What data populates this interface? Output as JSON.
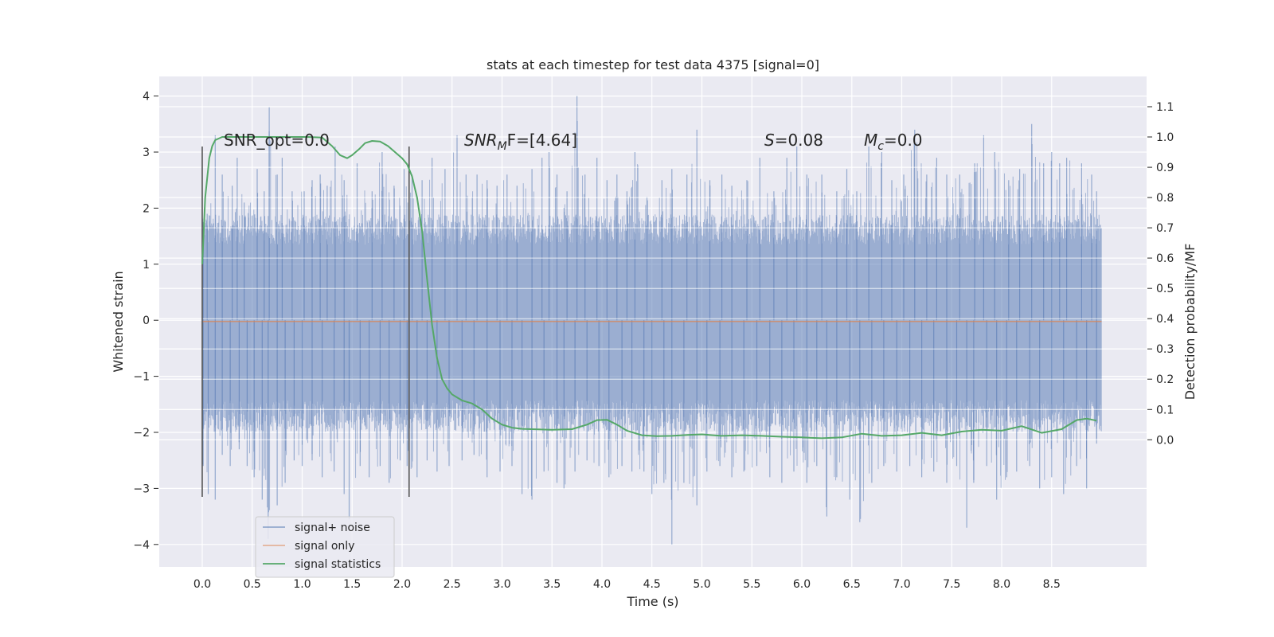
{
  "chart_data": {
    "type": "line",
    "title": "stats at each timestep for test data 4375 [signal=0]",
    "xlabel": "Time (s)",
    "ylabel": "Whitened strain",
    "ylabel_right": "Detection probability/MF",
    "xlim": [
      -0.43,
      9.45
    ],
    "ylim": [
      -4.4,
      4.35
    ],
    "ylim_right": [
      -0.42,
      1.2
    ],
    "x_ticks": [
      "0.0",
      "0.5",
      "1.0",
      "1.5",
      "2.0",
      "2.5",
      "3.0",
      "3.5",
      "4.0",
      "4.5",
      "5.0",
      "5.5",
      "6.0",
      "6.5",
      "7.0",
      "7.5",
      "8.0",
      "8.5"
    ],
    "x_tick_values": [
      0,
      0.5,
      1,
      1.5,
      2,
      2.5,
      3,
      3.5,
      4,
      4.5,
      5,
      5.5,
      6,
      6.5,
      7,
      7.5,
      8,
      8.5
    ],
    "y_ticks": [
      "4",
      "3",
      "2",
      "1",
      "0",
      "−1",
      "−2",
      "−3",
      "−4"
    ],
    "y_tick_values": [
      4,
      3,
      2,
      1,
      0,
      -1,
      -2,
      -3,
      -4
    ],
    "y_ticks_right": [
      "1.1",
      "1.0",
      "0.9",
      "0.8",
      "0.7",
      "0.6",
      "0.5",
      "0.4",
      "0.3",
      "0.2",
      "0.1",
      "0.0"
    ],
    "y_tick_values_right": [
      1.1,
      1.0,
      0.9,
      0.8,
      0.7,
      0.6,
      0.5,
      0.4,
      0.3,
      0.2,
      0.1,
      0.0
    ],
    "annotations": {
      "snr_opt": "SNR_opt=0.0",
      "snr_mf_main": "SNR",
      "snr_mf_sub": "M",
      "snr_mf_rest": "F=[4.64]",
      "s_main": "S",
      "s_rest": "=0.08",
      "mc_main": "M",
      "mc_sub": "c",
      "mc_rest": "=0.0"
    },
    "vlines": [
      0.0,
      2.07
    ],
    "vline_range": [
      -3.15,
      3.1
    ],
    "series": [
      {
        "name": "signal+ noise",
        "color": "#4c72b0",
        "kind": "noise",
        "x_range": [
          0,
          9.0
        ],
        "envelope_pos_typical": 1.8,
        "envelope_neg_typical": -1.9,
        "peak_values": [
          [
            0.01,
            1.75
          ],
          [
            0.05,
            1.9
          ],
          [
            0.13,
            3.3
          ],
          [
            0.2,
            2.6
          ],
          [
            0.3,
            2.4
          ],
          [
            0.35,
            2.9
          ],
          [
            0.42,
            2.1
          ],
          [
            0.55,
            2.7
          ],
          [
            0.62,
            2.3
          ],
          [
            0.67,
            3.8
          ],
          [
            0.75,
            2.6
          ],
          [
            0.8,
            2.9
          ],
          [
            0.9,
            2.3
          ],
          [
            1.02,
            2.3
          ],
          [
            1.1,
            2.5
          ],
          [
            1.18,
            2.6
          ],
          [
            1.25,
            2.4
          ],
          [
            1.33,
            3.1
          ],
          [
            1.42,
            2.5
          ],
          [
            1.55,
            2.8
          ],
          [
            1.7,
            2.3
          ],
          [
            1.8,
            3.0
          ],
          [
            1.92,
            2.4
          ],
          [
            2.02,
            2.7
          ],
          [
            2.1,
            2.6
          ],
          [
            2.2,
            2.5
          ],
          [
            2.3,
            2.9
          ],
          [
            2.43,
            2.7
          ],
          [
            2.55,
            3.3
          ],
          [
            2.64,
            2.6
          ],
          [
            2.75,
            2.6
          ],
          [
            2.85,
            2.5
          ],
          [
            2.95,
            2.4
          ],
          [
            3.05,
            2.6
          ],
          [
            3.15,
            2.4
          ],
          [
            3.3,
            2.7
          ],
          [
            3.4,
            2.9
          ],
          [
            3.47,
            3.0
          ],
          [
            3.55,
            2.6
          ],
          [
            3.65,
            2.3
          ],
          [
            3.75,
            4.0
          ],
          [
            3.83,
            2.6
          ],
          [
            3.95,
            2.9
          ],
          [
            4.05,
            2.5
          ],
          [
            4.15,
            2.6
          ],
          [
            4.25,
            2.3
          ],
          [
            4.33,
            3.0
          ],
          [
            4.45,
            2.2
          ],
          [
            4.6,
            2.5
          ],
          [
            4.7,
            2.7
          ],
          [
            4.85,
            2.6
          ],
          [
            4.95,
            3.4
          ],
          [
            5.08,
            2.5
          ],
          [
            5.2,
            2.6
          ],
          [
            5.3,
            2.4
          ],
          [
            5.45,
            2.5
          ],
          [
            5.58,
            2.9
          ],
          [
            5.72,
            2.3
          ],
          [
            5.85,
            2.9
          ],
          [
            5.95,
            3.1
          ],
          [
            6.05,
            2.6
          ],
          [
            6.2,
            2.6
          ],
          [
            6.35,
            2.3
          ],
          [
            6.45,
            2.7
          ],
          [
            6.55,
            2.3
          ],
          [
            6.67,
            3.1
          ],
          [
            6.8,
            3.0
          ],
          [
            6.9,
            2.5
          ],
          [
            7.02,
            2.6
          ],
          [
            7.13,
            3.4
          ],
          [
            7.25,
            2.6
          ],
          [
            7.35,
            2.9
          ],
          [
            7.45,
            2.6
          ],
          [
            7.58,
            2.6
          ],
          [
            7.73,
            2.8
          ],
          [
            7.82,
            3.3
          ],
          [
            7.93,
            3.0
          ],
          [
            8.07,
            2.5
          ],
          [
            8.18,
            2.7
          ],
          [
            8.3,
            3.5
          ],
          [
            8.42,
            2.8
          ],
          [
            8.5,
            3.0
          ],
          [
            8.58,
            2.8
          ],
          [
            8.65,
            2.9
          ],
          [
            8.8,
            2.8
          ],
          [
            8.9,
            2.6
          ],
          [
            8.95,
            2.3
          ]
        ],
        "trough_values": [
          [
            0.01,
            -2.6
          ],
          [
            0.06,
            -3.1
          ],
          [
            0.13,
            -3.2
          ],
          [
            0.2,
            -2.4
          ],
          [
            0.28,
            -2.6
          ],
          [
            0.37,
            -2.3
          ],
          [
            0.45,
            -2.6
          ],
          [
            0.52,
            -2.8
          ],
          [
            0.6,
            -3.2
          ],
          [
            0.66,
            -3.9
          ],
          [
            0.75,
            -3.3
          ],
          [
            0.83,
            -2.9
          ],
          [
            0.92,
            -2.5
          ],
          [
            1.0,
            -2.6
          ],
          [
            1.1,
            -2.5
          ],
          [
            1.2,
            -2.8
          ],
          [
            1.32,
            -2.7
          ],
          [
            1.42,
            -3.1
          ],
          [
            1.47,
            -3.55
          ],
          [
            1.58,
            -2.6
          ],
          [
            1.67,
            -2.8
          ],
          [
            1.78,
            -2.6
          ],
          [
            1.87,
            -2.9
          ],
          [
            1.98,
            -2.5
          ],
          [
            2.05,
            -2.6
          ],
          [
            2.15,
            -2.8
          ],
          [
            2.25,
            -2.5
          ],
          [
            2.35,
            -2.7
          ],
          [
            2.47,
            -2.6
          ],
          [
            2.6,
            -2.5
          ],
          [
            2.72,
            -2.4
          ],
          [
            2.85,
            -2.8
          ],
          [
            2.98,
            -2.7
          ],
          [
            3.1,
            -2.6
          ],
          [
            3.2,
            -3.1
          ],
          [
            3.3,
            -3.2
          ],
          [
            3.42,
            -2.7
          ],
          [
            3.55,
            -2.9
          ],
          [
            3.62,
            -3.0
          ],
          [
            3.73,
            -2.7
          ],
          [
            3.85,
            -2.5
          ],
          [
            3.97,
            -2.6
          ],
          [
            4.07,
            -2.8
          ],
          [
            4.2,
            -2.6
          ],
          [
            4.3,
            -2.7
          ],
          [
            4.42,
            -2.7
          ],
          [
            4.5,
            -3.1
          ],
          [
            4.62,
            -2.9
          ],
          [
            4.7,
            -4.0
          ],
          [
            4.82,
            -2.9
          ],
          [
            4.95,
            -3.3
          ],
          [
            5.05,
            -2.7
          ],
          [
            5.18,
            -2.6
          ],
          [
            5.3,
            -2.8
          ],
          [
            5.42,
            -2.7
          ],
          [
            5.55,
            -2.6
          ],
          [
            5.68,
            -2.8
          ],
          [
            5.8,
            -2.9
          ],
          [
            5.92,
            -2.7
          ],
          [
            6.05,
            -2.9
          ],
          [
            6.15,
            -2.6
          ],
          [
            6.25,
            -3.5
          ],
          [
            6.35,
            -2.8
          ],
          [
            6.48,
            -3.2
          ],
          [
            6.58,
            -3.6
          ],
          [
            6.7,
            -2.9
          ],
          [
            6.82,
            -2.6
          ],
          [
            6.95,
            -2.7
          ],
          [
            7.08,
            -2.6
          ],
          [
            7.2,
            -2.8
          ],
          [
            7.32,
            -2.7
          ],
          [
            7.45,
            -2.9
          ],
          [
            7.55,
            -2.6
          ],
          [
            7.65,
            -3.7
          ],
          [
            7.72,
            -2.9
          ],
          [
            7.85,
            -2.6
          ],
          [
            7.95,
            -3.2
          ],
          [
            8.05,
            -2.8
          ],
          [
            8.15,
            -2.7
          ],
          [
            8.28,
            -2.6
          ],
          [
            8.38,
            -3.0
          ],
          [
            8.5,
            -2.8
          ],
          [
            8.62,
            -3.1
          ],
          [
            8.75,
            -2.6
          ],
          [
            8.85,
            -3.0
          ],
          [
            8.95,
            -2.2
          ]
        ]
      },
      {
        "name": "signal only",
        "color": "#dd8452",
        "kind": "flat",
        "x": [
          0,
          9.0
        ],
        "y": [
          -0.02,
          -0.02
        ]
      },
      {
        "name": "signal statistics",
        "color": "#55a868",
        "kind": "line",
        "axis": "right",
        "x": [
          0.0,
          0.03,
          0.07,
          0.1,
          0.13,
          0.2,
          0.3,
          0.5,
          0.7,
          0.9,
          1.05,
          1.2,
          1.3,
          1.38,
          1.45,
          1.5,
          1.57,
          1.63,
          1.7,
          1.78,
          1.86,
          1.93,
          2.0,
          2.05,
          2.1,
          2.15,
          2.2,
          2.25,
          2.3,
          2.35,
          2.4,
          2.45,
          2.5,
          2.55,
          2.6,
          2.7,
          2.8,
          2.9,
          3.0,
          3.1,
          3.2,
          3.3,
          3.5,
          3.7,
          3.85,
          3.95,
          4.05,
          4.15,
          4.25,
          4.4,
          4.55,
          4.7,
          4.85,
          5.0,
          5.2,
          5.4,
          5.6,
          5.8,
          6.0,
          6.2,
          6.4,
          6.6,
          6.8,
          7.0,
          7.2,
          7.4,
          7.6,
          7.8,
          8.0,
          8.2,
          8.4,
          8.6,
          8.75,
          8.85,
          8.95
        ],
        "y": [
          0.58,
          0.8,
          0.93,
          0.97,
          0.99,
          1.0,
          1.0,
          1.0,
          1.0,
          1.0,
          1.0,
          0.998,
          0.97,
          0.94,
          0.93,
          0.94,
          0.96,
          0.98,
          0.987,
          0.985,
          0.97,
          0.95,
          0.93,
          0.91,
          0.87,
          0.8,
          0.69,
          0.53,
          0.38,
          0.27,
          0.2,
          0.17,
          0.15,
          0.14,
          0.13,
          0.12,
          0.1,
          0.07,
          0.05,
          0.04,
          0.036,
          0.035,
          0.033,
          0.035,
          0.05,
          0.065,
          0.066,
          0.05,
          0.03,
          0.015,
          0.012,
          0.013,
          0.016,
          0.018,
          0.013,
          0.015,
          0.013,
          0.01,
          0.008,
          0.005,
          0.008,
          0.02,
          0.013,
          0.015,
          0.023,
          0.015,
          0.027,
          0.033,
          0.03,
          0.045,
          0.023,
          0.035,
          0.065,
          0.07,
          0.063
        ]
      }
    ],
    "legend_position": "lower-left"
  },
  "legend": {
    "items": [
      "signal+ noise",
      "signal only",
      "signal statistics"
    ]
  }
}
